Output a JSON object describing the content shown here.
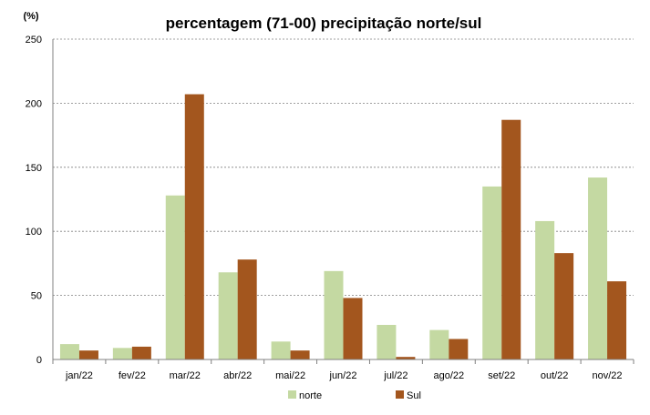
{
  "chart_data": {
    "type": "bar",
    "title": "percentagem (71-00) precipitação norte/sul",
    "ylabel": "(%)",
    "xlabel": "",
    "categories": [
      "jan/22",
      "fev/22",
      "mar/22",
      "abr/22",
      "mai/22",
      "jun/22",
      "jul/22",
      "ago/22",
      "set/22",
      "out/22",
      "nov/22"
    ],
    "series": [
      {
        "name": "norte",
        "color": "#c4d9a2",
        "values": [
          12,
          9,
          128,
          68,
          14,
          69,
          27,
          23,
          135,
          108,
          142
        ]
      },
      {
        "name": "Sul",
        "color": "#a3561e",
        "values": [
          7,
          10,
          207,
          78,
          7,
          48,
          2,
          16,
          187,
          83,
          61
        ]
      }
    ],
    "ylim": [
      0,
      250
    ],
    "yticks": [
      0,
      50,
      100,
      150,
      200,
      250
    ],
    "grid": true,
    "legend_position": "bottom"
  }
}
